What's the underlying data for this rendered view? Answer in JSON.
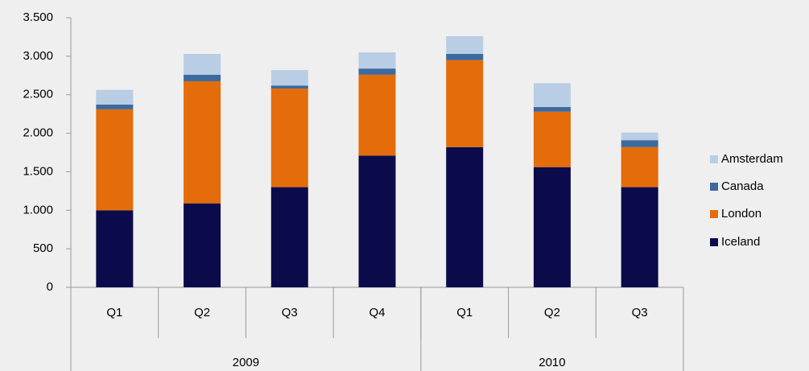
{
  "chart_data": {
    "type": "stacked_bar",
    "categories": [
      "Q1",
      "Q2",
      "Q3",
      "Q4",
      "Q1",
      "Q2",
      "Q3"
    ],
    "groups": [
      {
        "label": "2009",
        "count": 4
      },
      {
        "label": "2010",
        "count": 3
      }
    ],
    "series": [
      {
        "name": "Iceland",
        "color": "#0b0b4b",
        "values": [
          1000,
          1090,
          1300,
          1710,
          1820,
          1560,
          1300
        ]
      },
      {
        "name": "London",
        "color": "#e46c0a",
        "values": [
          1310,
          1585,
          1280,
          1050,
          1130,
          720,
          520
        ]
      },
      {
        "name": "Canada",
        "color": "#3c6a9e",
        "values": [
          63,
          85,
          40,
          80,
          80,
          60,
          90
        ]
      },
      {
        "name": "Amsterdam",
        "color": "#b9cde5",
        "values": [
          190,
          270,
          200,
          210,
          230,
          310,
          100
        ]
      }
    ],
    "ylim": [
      0,
      3500
    ],
    "yticks": [
      0,
      500,
      {
        "value": 1000,
        "label": "1.000"
      },
      {
        "value": 1500,
        "label": "1.500"
      },
      {
        "value": 2000,
        "label": "2.000"
      },
      {
        "value": 2500,
        "label": "2.500"
      },
      {
        "value": 3000,
        "label": "3.000"
      },
      {
        "value": 3500,
        "label": "3.500"
      }
    ],
    "legend": "right"
  }
}
